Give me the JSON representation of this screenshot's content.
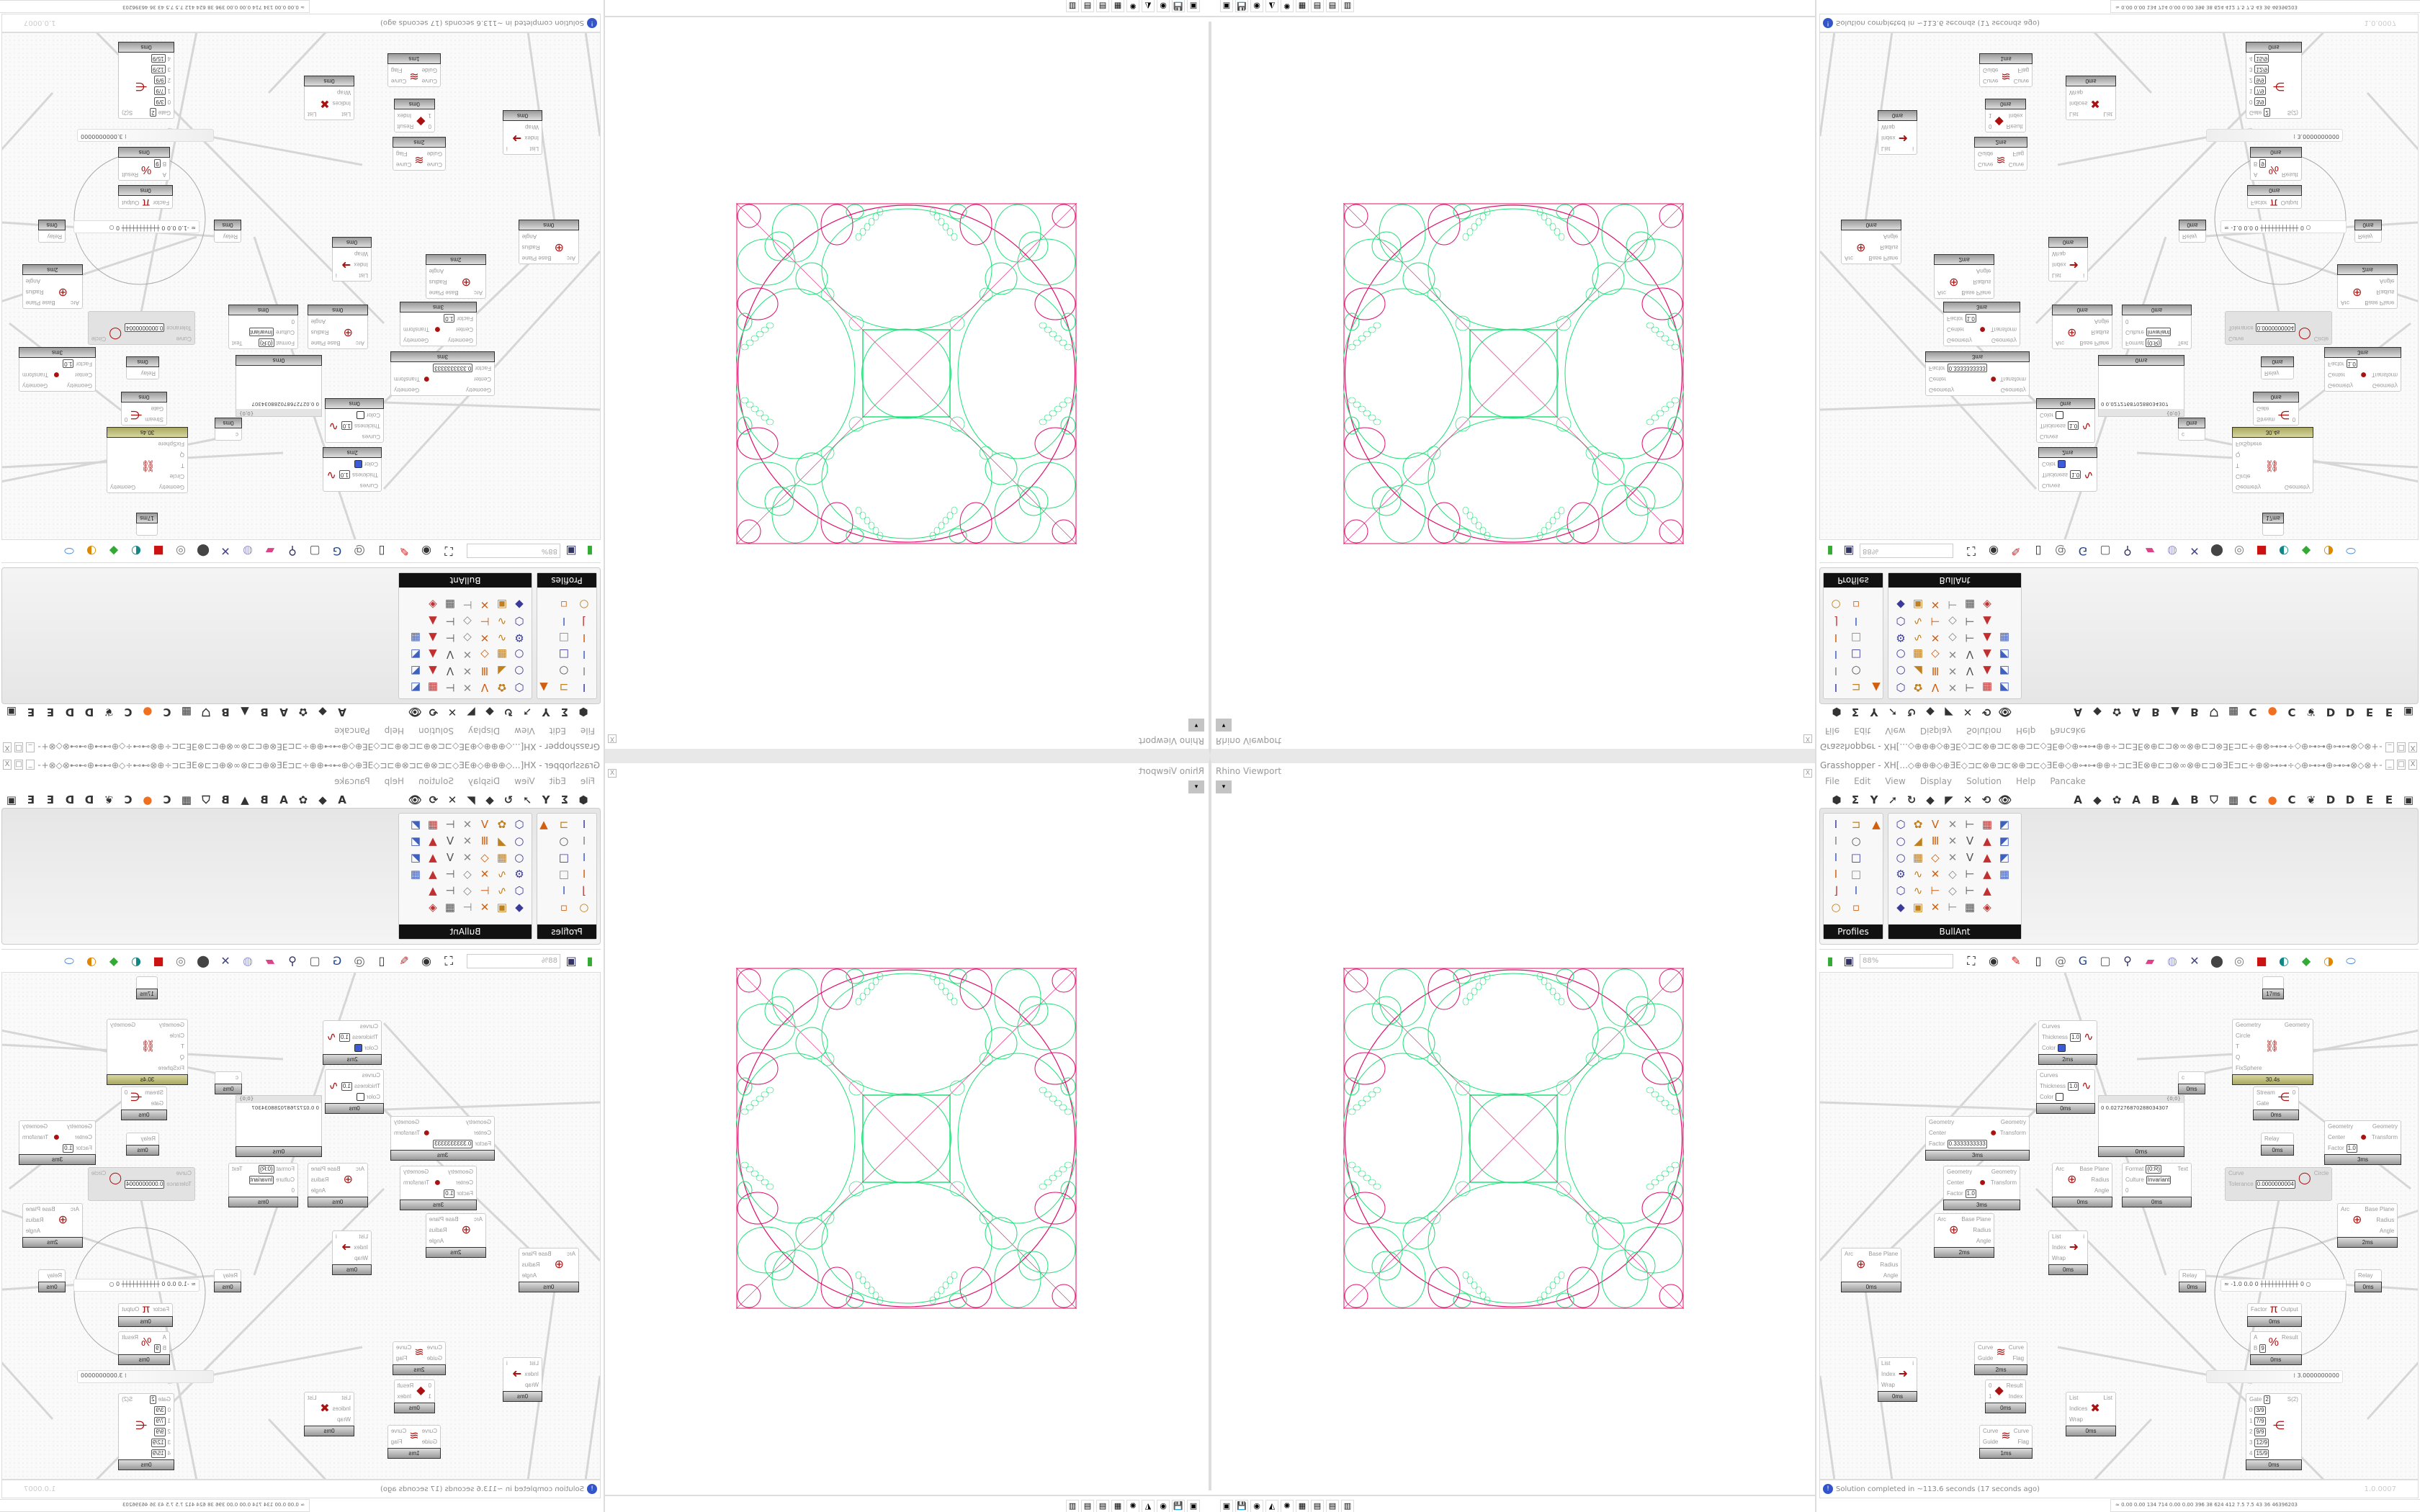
{
  "viewport": {
    "title": "Rhino Viewport",
    "close": "X",
    "dropdown": "▾"
  },
  "taskbar": {
    "icons": [
      "terminal-icon",
      "floppy-64-icon",
      "firefox-icon",
      "rhino-icon",
      "red-app-icon",
      "calculator-icon",
      "notepad-icon",
      "notepad-icon",
      "file-icon"
    ]
  },
  "grasshopper": {
    "title": "Grasshopper - XH[...◇⊕⊕⊕◇⊕ƎE◇⊐⊏⊗⊕⊐⊏⊗⊕⊐⊏◇ƎE⊕◇⊕⊶⊶⊕⊕÷⊐⊏ƎE⊗⊕⊏⊐⊗∞⊗⊕⊏⊐⊗ƎE⊐⊏÷⊕⊗⊶⊶÷◇⊕⊶⊶⊕⊶⊶⊗◇⊗+++⊗◇⊗⊶⊶⊕⊶⊶⊕◇⊕⊶⊶⊗⊕÷⊐⊏ƎE⊗⊕⊏⊐⊗∞⊕...",
    "window_buttons": [
      "_",
      "□",
      "X"
    ],
    "menu": [
      "File",
      "Edit",
      "View",
      "Display",
      "Solution",
      "Help",
      "Pancake"
    ],
    "toolbar_left": [
      "⬢",
      "Σ",
      "Y",
      "➚",
      "↻",
      "◆",
      "◤",
      "✕",
      "⟲",
      "👁"
    ],
    "toolbar_letters": [
      "A",
      "◆",
      "✿",
      "A",
      "B",
      "▲",
      "B",
      "⛉",
      "▦",
      "C",
      "●",
      "C",
      "❦",
      "D",
      "D",
      "E",
      "E",
      "▣"
    ],
    "ribbon": {
      "profiles": {
        "label": "Profiles",
        "icons": [
          "I",
          "⊐",
          "▲",
          "I",
          "○",
          "",
          "I",
          "□",
          "",
          "I",
          "□",
          "",
          "⌋",
          "I",
          "",
          "○",
          "▫",
          ""
        ]
      },
      "bullant": {
        "label": "BullAnt",
        "icons": [
          "⬡",
          "✿",
          "V",
          "✕",
          "⊢",
          "▦",
          "◩",
          "○",
          "◢",
          "Ⅲ",
          "✕",
          "V",
          "▲",
          "◩",
          "○",
          "▦",
          "◇",
          "✕",
          "V",
          "▲",
          "◩",
          "⚙",
          "∿",
          "✕",
          "◇",
          "⊢",
          "▲",
          "▦",
          "⬡",
          "∿",
          "⊢",
          "◇",
          "⊢",
          "▲",
          "",
          "◆",
          "▣",
          "✕",
          "⊢",
          "▦",
          "◈",
          ""
        ]
      }
    },
    "zoom_level": "88%",
    "canvas_tools": [
      "folder-icon",
      "save-icon",
      "zoom-extents-icon",
      "eye-icon",
      "sketch-icon",
      "bake-icon",
      "at-icon",
      "gha-icon",
      "window-icon",
      "search-icon",
      "box-icon",
      "bulb-icon",
      "cross-icon",
      "sphere-icon",
      "ring-icon",
      "cube-icon",
      "torus-icon",
      "cone-icon",
      "ball-icon",
      "blob-icon"
    ],
    "nodes": [
      {
        "inputs": [
          "Curves",
          "Thickness",
          "Color"
        ],
        "params": {
          "Thickness": "1.0"
        },
        "swatch": "#3b5bd9",
        "outputs": [],
        "icon": "∿",
        "time": "2ms"
      },
      {
        "inputs": [
          "Curves",
          "Thickness",
          "Color"
        ],
        "params": {
          "Thickness": "1.0"
        },
        "swatch": "#ffffff",
        "outputs": [],
        "icon": "∿",
        "time": "0ms"
      },
      {
        "inputs": [
          "Geometry",
          "Center",
          "Factor"
        ],
        "params": {
          "Factor": "0.3333333333"
        },
        "outputs": [
          "Geometry",
          "Transform"
        ],
        "icon": "●",
        "time": "3ms"
      },
      {
        "inputs": [
          "Geometry",
          "Center",
          "Factor"
        ],
        "params": {
          "Factor": "1.0"
        },
        "outputs": [
          "Geometry",
          "Transform"
        ],
        "icon": "●",
        "time": "3ms"
      },
      {
        "inputs": [
          "Arc"
        ],
        "outputs": [
          "Base Plane",
          "Radius",
          "Angle"
        ],
        "icon": "⊕",
        "time": "0ms"
      },
      {
        "inputs": [
          "Geometry",
          "Circle",
          "T",
          "Q",
          "FixSphere"
        ],
        "outputs": [
          "Geometry"
        ],
        "icon": "⛓",
        "time": "30.4s",
        "slow": true
      },
      {
        "inputs": [
          "c"
        ],
        "outputs": [],
        "icon": "",
        "time": "0ms"
      },
      {
        "inputs": [
          "Stream",
          "Gate"
        ],
        "outputs": [
          "0"
        ],
        "icon": "⋲",
        "time": "0ms"
      },
      {
        "inputs": [
          "Relay"
        ],
        "outputs": [],
        "icon": "",
        "time": "0ms"
      },
      {
        "inputs": [
          "Format",
          "Culture",
          "0"
        ],
        "params": {
          "Format": "{0:R}",
          "Culture": "Invariant"
        },
        "outputs": [
          "Text"
        ],
        "icon": "",
        "time": "0ms"
      },
      {
        "inputs": [
          "Curve",
          "Tolerance"
        ],
        "params": {
          "Tolerance": "0.0000000004"
        },
        "outputs": [
          "Circle"
        ],
        "icon": "◯",
        "time": "",
        "disabled": true
      },
      {
        "inputs": [
          "Geometry",
          "Center",
          "Factor"
        ],
        "params": {
          "Factor": "1.0"
        },
        "outputs": [
          "Geometry",
          "Transform"
        ],
        "icon": "●",
        "time": "3ms"
      },
      {
        "inputs": [
          "Arc"
        ],
        "outputs": [
          "Base Plane",
          "Radius",
          "Angle"
        ],
        "icon": "⊕",
        "time": "2ms"
      },
      {
        "inputs": [
          "Arc"
        ],
        "outputs": [
          "Base Plane",
          "Radius",
          "Angle"
        ],
        "icon": "⊕",
        "time": "0ms"
      },
      {
        "inputs": [
          "Arc"
        ],
        "outputs": [
          "Base Plane",
          "Radius",
          "Angle"
        ],
        "icon": "⊕",
        "time": "2ms"
      },
      {
        "inputs": [
          "List",
          "Index",
          "Wrap"
        ],
        "outputs": [
          "i"
        ],
        "icon": "➜",
        "time": "0ms"
      },
      {
        "inputs": [
          "Curve",
          "Guide"
        ],
        "outputs": [
          "Curve",
          "Flag"
        ],
        "icon": "≋",
        "time": "2ms"
      },
      {
        "inputs": [
          "List",
          "Index",
          "Wrap"
        ],
        "outputs": [
          "i"
        ],
        "icon": "➜",
        "time": "0ms"
      },
      {
        "inputs": [
          "0",
          "1"
        ],
        "outputs": [
          "Result",
          "Index"
        ],
        "icon": "◆",
        "time": "0ms"
      },
      {
        "inputs": [
          "List",
          "Indices",
          "Wrap"
        ],
        "outputs": [
          "List"
        ],
        "icon": "✖",
        "time": "0ms"
      },
      {
        "inputs": [
          "Curve",
          "Guide"
        ],
        "outputs": [
          "Curve",
          "Flag"
        ],
        "icon": "≋",
        "time": "1ms"
      },
      {
        "inputs": [
          "Factor"
        ],
        "outputs": [
          "Output"
        ],
        "icon": "π",
        "time": "0ms"
      },
      {
        "inputs": [
          "A",
          "B"
        ],
        "params": {
          "B": "9"
        },
        "outputs": [
          "Result"
        ],
        "icon": "%",
        "time": "0ms"
      },
      {
        "inputs": [
          "Gate",
          "0",
          "1",
          "2",
          "3",
          "4"
        ],
        "params": {
          "Gate": "2",
          "0": "3/9",
          "1": "7/9",
          "2": "9/9",
          "3": "12/9",
          "4": "15/9"
        },
        "outputs": [
          "S(2)"
        ],
        "icon": "⋲",
        "time": "0ms"
      },
      {
        "inputs": [
          "Relay"
        ],
        "outputs": [],
        "icon": "",
        "time": "0ms"
      },
      {
        "inputs": [
          "Relay"
        ],
        "outputs": [],
        "icon": "",
        "time": "0ms"
      },
      {
        "inputs": [
          ""
        ],
        "outputs": [],
        "icon": "",
        "time": "17ms"
      }
    ],
    "panel": {
      "header": "{0;0}",
      "value": "0 0.027276870288034307",
      "time": "0ms"
    },
    "sliders": [
      {
        "text": "≈ -1.0  0.0  0  ┼┼┼┼┼┼┼┼┼┼┼ 0 ○"
      },
      {
        "text": "⁞ 3.0000000000"
      }
    ],
    "status": {
      "message": "Solution completed in ~113.6 seconds (17 seconds ago)",
      "version": "1.0.0007"
    },
    "perf": "≈  0.00 0.00 134 714 0.00 0.00 396 38 624 412 7.5 7.5 43 36 46396203"
  },
  "colors": {
    "fractal_green": "#22e07a",
    "fractal_pink": "#e0106e",
    "accent_blue": "#3b5bd9"
  }
}
